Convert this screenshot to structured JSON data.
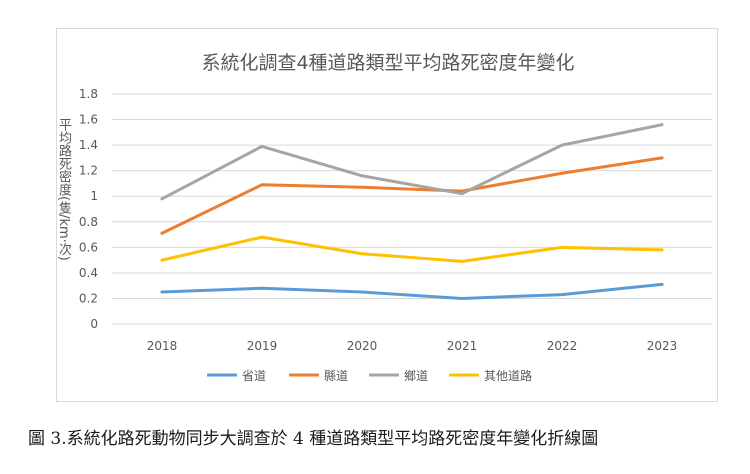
{
  "caption": "圖 3.系統化路死動物同步大調查於 4 種道路類型平均路死密度年變化折線圖",
  "chart_data": {
    "type": "line",
    "title": "系統化調查4種道路類型平均路死密度年變化",
    "ylabel": "平均路死密度(隻/km·次)",
    "xlabel": "",
    "categories": [
      "2018",
      "2019",
      "2020",
      "2021",
      "2022",
      "2023"
    ],
    "ylim": [
      0,
      1.8
    ],
    "yticks": [
      "0",
      "0.2",
      "0.4",
      "0.6",
      "0.8",
      "1",
      "1.2",
      "1.4",
      "1.6",
      "1.8"
    ],
    "grid": true,
    "legend": "bottom",
    "series": [
      {
        "name": "省道",
        "color": "#5b9bd5",
        "values": [
          0.25,
          0.28,
          0.25,
          0.2,
          0.23,
          0.31
        ]
      },
      {
        "name": "縣道",
        "color": "#ed7d31",
        "values": [
          0.71,
          1.09,
          1.07,
          1.04,
          1.18,
          1.3
        ]
      },
      {
        "name": "鄉道",
        "color": "#a5a5a5",
        "values": [
          0.98,
          1.39,
          1.16,
          1.02,
          1.4,
          1.56
        ]
      },
      {
        "name": "其他道路",
        "color": "#ffc000",
        "values": [
          0.5,
          0.68,
          0.55,
          0.49,
          0.6,
          0.58
        ]
      }
    ]
  }
}
